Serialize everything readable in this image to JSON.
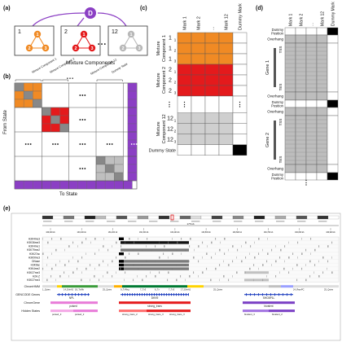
{
  "panels": {
    "a": {
      "label": "(a)",
      "dummy_node": "D",
      "components": [
        {
          "index": "1",
          "color": "#f08a24",
          "nodes": [
            "1",
            "2",
            "3"
          ]
        },
        {
          "index": "2",
          "color": "#e41a1c",
          "nodes": [
            "1",
            "2",
            "3"
          ]
        },
        {
          "index": "12",
          "color": "#b8b8b8",
          "nodes": [
            "1",
            "2",
            "3"
          ]
        }
      ],
      "ellipsis": "• • •",
      "caption": "Mixture Components"
    },
    "b": {
      "label": "(b)",
      "col_labels": [
        "Mixture Component 1",
        "Mixture Component 2",
        "Mixture Component 12",
        "Dummy State"
      ],
      "ellipsis": "• • •",
      "y_axis": "From State",
      "x_axis": "To State"
    },
    "c": {
      "label": "(c)",
      "columns": [
        "Mark 1",
        "Mark 2",
        "...",
        "Mark 12",
        "Dummy Mark"
      ],
      "groups": [
        {
          "name": "Mixture Component 1",
          "rows": [
            "1",
            "1",
            "1"
          ],
          "subs": [
            "1",
            "2",
            "3"
          ],
          "color": "#f08a24"
        },
        {
          "name": "Mixture Component 2",
          "rows": [
            "2",
            "2",
            "2"
          ],
          "subs": [
            "1",
            "2",
            "3"
          ],
          "color": "#e41a1c"
        },
        {
          "name": "Mixture Component 12",
          "rows": [
            "12",
            "12",
            "12"
          ],
          "subs": [
            "1",
            "2",
            "3"
          ],
          "color": "#cfcfcf"
        }
      ],
      "dummy_row": "Dummy State",
      "ellipsis": "⋮"
    },
    "d": {
      "label": "(d)",
      "columns": [
        "Mark 1",
        "Mark 2",
        "...",
        "Mark 12",
        "Dummy Mark"
      ],
      "row_labels": [
        "Dummy Position",
        "Overhang",
        "TSS",
        "Gene 1",
        "TES",
        "Overhang",
        "Dummy Position",
        "Overhang",
        "TSS",
        "Gene 2",
        "TES",
        "Overhang",
        "Dummy Position"
      ],
      "ellipsis": "⋮"
    },
    "e": {
      "label": "(e)",
      "scale_label": "175 kb",
      "coords": [
        "160,000 kb",
        "160,100 kb",
        "160,200 kb",
        "160,300 kb",
        "160,400 kb",
        "160,500 kb",
        "160,600 kb",
        "160,700 kb",
        "160,800 kb",
        "160,900 kb"
      ],
      "tracks": [
        "H3K4me3",
        "H3K36me3",
        "H3K4me1",
        "H3K79me2",
        "H3K27ac",
        "H3K9me3",
        "DNase",
        "H3K9ac",
        "H3K4me2",
        "H3K27me3",
        "H2A.Z",
        "H3K27me3"
      ],
      "annotation_tracks": [
        "ChromHMM",
        "GENCODE Genes",
        "ChromGene",
        "Hidden States"
      ],
      "chromhmm_labels": [
        "1_Quies",
        "14_EnhA2",
        "18_TxWk",
        "25_Quies",
        "9_TxReg",
        "7_Tx3",
        "6_Tx",
        "7_Tx3",
        "17_EnhA2",
        "25_Quies",
        "24_ReprPC",
        "25_Quies"
      ],
      "genes": [
        "NPL",
        "DHX9",
        "SHCBP1L"
      ],
      "chromgene_labels": [
        "poised",
        "strong_trans",
        "bivalent"
      ],
      "hidden_labels": [
        "poised_3",
        "poised_2",
        "strong_trans_2",
        "strong_trans_3",
        "strong_trans_3",
        "bivalent_3",
        "bivalent_2"
      ]
    }
  }
}
